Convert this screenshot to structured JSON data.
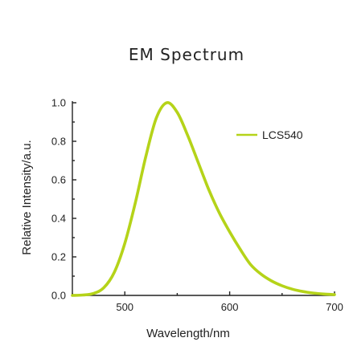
{
  "chart_data": {
    "type": "line",
    "title": "EM Spectrum",
    "xlabel": "Wavelength/nm",
    "ylabel": "Relative  Intensity/a.u.",
    "xlim": [
      450,
      700
    ],
    "ylim": [
      0,
      1.0
    ],
    "xticks": [
      500,
      600,
      700
    ],
    "xtick_labels": [
      "500",
      "600",
      "700"
    ],
    "yticks": [
      0.0,
      0.2,
      0.4,
      0.6,
      0.8,
      1.0
    ],
    "ytick_labels": [
      "0.0",
      "0.2",
      "0.4",
      "0.6",
      "0.8",
      "1.0"
    ],
    "grid": false,
    "legend": {
      "position": "top-right"
    },
    "series": [
      {
        "name": "LCS540",
        "color": "#b5d319",
        "x": [
          450,
          460,
          470,
          480,
          490,
          500,
          510,
          520,
          530,
          540,
          550,
          560,
          570,
          580,
          590,
          600,
          610,
          620,
          630,
          640,
          650,
          660,
          670,
          680,
          690,
          700
        ],
        "y": [
          0.0,
          0.002,
          0.01,
          0.04,
          0.12,
          0.27,
          0.48,
          0.72,
          0.92,
          1.0,
          0.95,
          0.83,
          0.69,
          0.55,
          0.43,
          0.33,
          0.24,
          0.16,
          0.11,
          0.075,
          0.05,
          0.032,
          0.02,
          0.012,
          0.007,
          0.004
        ]
      }
    ]
  }
}
